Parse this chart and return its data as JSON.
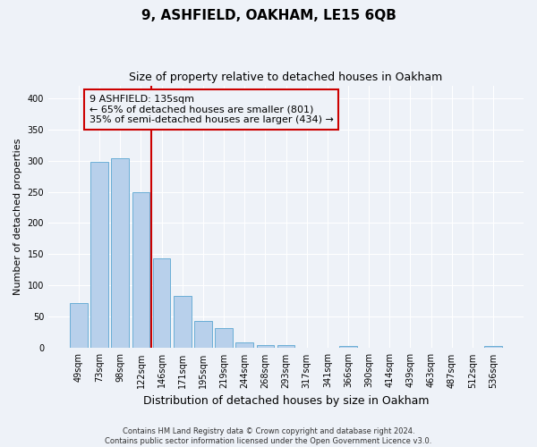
{
  "title": "9, ASHFIELD, OAKHAM, LE15 6QB",
  "subtitle": "Size of property relative to detached houses in Oakham",
  "xlabel": "Distribution of detached houses by size in Oakham",
  "ylabel": "Number of detached properties",
  "categories": [
    "49sqm",
    "73sqm",
    "98sqm",
    "122sqm",
    "146sqm",
    "171sqm",
    "195sqm",
    "219sqm",
    "244sqm",
    "268sqm",
    "293sqm",
    "317sqm",
    "341sqm",
    "366sqm",
    "390sqm",
    "414sqm",
    "439sqm",
    "463sqm",
    "487sqm",
    "512sqm",
    "536sqm"
  ],
  "bar_heights": [
    72,
    298,
    304,
    250,
    143,
    83,
    43,
    32,
    9,
    5,
    5,
    0,
    0,
    3,
    0,
    0,
    0,
    0,
    0,
    0,
    3
  ],
  "bar_color": "#b8d0eb",
  "bar_edge_color": "#6aaed6",
  "vline_color": "#cc0000",
  "vline_x_index": 3.5,
  "annotation_line1": "9 ASHFIELD: 135sqm",
  "annotation_line2": "← 65% of detached houses are smaller (801)",
  "annotation_line3": "35% of semi-detached houses are larger (434) →",
  "annotation_box_edgecolor": "#cc0000",
  "annotation_box_facecolor": "#eef2f8",
  "ylim": [
    0,
    420
  ],
  "yticks": [
    0,
    50,
    100,
    150,
    200,
    250,
    300,
    350,
    400
  ],
  "footnote_line1": "Contains HM Land Registry data © Crown copyright and database right 2024.",
  "footnote_line2": "Contains public sector information licensed under the Open Government Licence v3.0.",
  "bg_color": "#eef2f8",
  "grid_color": "#ffffff",
  "title_fontsize": 11,
  "subtitle_fontsize": 9,
  "ylabel_fontsize": 8,
  "xlabel_fontsize": 9,
  "tick_fontsize": 7,
  "annotation_fontsize": 8,
  "footnote_fontsize": 6
}
